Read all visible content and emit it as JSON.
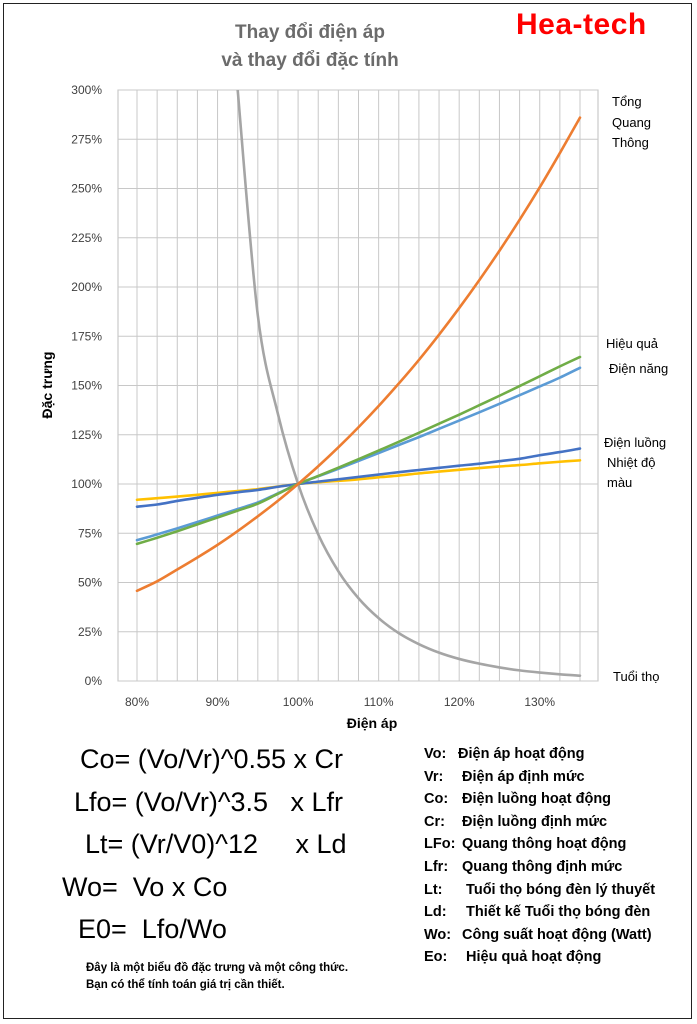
{
  "header": {
    "title_line1": "Thay đổi điện áp",
    "title_line2": "và thay đổi đặc tính",
    "brand": "Hea-tech"
  },
  "chart_data": {
    "type": "line",
    "xlabel": "Điện áp",
    "ylabel": "Đặc trưng",
    "xlim": [
      80,
      135
    ],
    "ylim": [
      0,
      300
    ],
    "x_ticks": [
      "80%",
      "90%",
      "100%",
      "110%",
      "120%",
      "130%"
    ],
    "y_ticks": [
      "0%",
      "25%",
      "50%",
      "75%",
      "100%",
      "125%",
      "150%",
      "175%",
      "200%",
      "225%",
      "250%",
      "275%",
      "300%"
    ],
    "grid": true,
    "x": [
      80,
      82.5,
      85,
      87.5,
      90,
      92.5,
      95,
      97.5,
      100,
      102.5,
      105,
      107.5,
      110,
      112.5,
      115,
      117.5,
      120,
      122.5,
      125,
      127.5,
      130,
      132.5,
      135
    ],
    "series": [
      {
        "name": "Tổng Quang Thông",
        "color": "#ed7d31",
        "values": [
          45.8,
          50.6,
          56.6,
          62.7,
          69.1,
          76.1,
          83.6,
          91.5,
          100,
          109.0,
          118.6,
          128.8,
          139.6,
          151.0,
          163.0,
          175.8,
          189.3,
          203.5,
          218.4,
          234.1,
          250.6,
          268.0,
          286.0
        ]
      },
      {
        "name": "Hiệu quả",
        "color": "#70ad47",
        "values": [
          69.6,
          72.7,
          76.0,
          79.5,
          83.0,
          86.5,
          90.0,
          95.0,
          100,
          104.1,
          108.3,
          112.6,
          117.0,
          121.4,
          126.0,
          130.6,
          135.2,
          140.0,
          144.8,
          149.7,
          154.7,
          159.7,
          164.5
        ]
      },
      {
        "name": "Điện năng",
        "color": "#5b9bd5",
        "values": [
          71.5,
          74.4,
          77.5,
          80.7,
          84.0,
          87.3,
          90.6,
          95.3,
          100,
          103.9,
          107.7,
          111.7,
          115.7,
          119.8,
          123.8,
          128.0,
          132.2,
          136.4,
          140.7,
          145.1,
          149.5,
          154.0,
          159.0
        ]
      },
      {
        "name": "Điện luồng",
        "color": "#4472c4",
        "values": [
          88.5,
          89.6,
          91.4,
          93.0,
          94.5,
          95.8,
          97.0,
          98.6,
          100,
          101.2,
          102.4,
          103.6,
          104.8,
          106.0,
          107.1,
          108.2,
          109.3,
          110.3,
          111.6,
          112.8,
          114.6,
          116.2,
          118.0
        ]
      },
      {
        "name": "Nhiệt độ màu",
        "color": "#ffc000",
        "values": [
          92.0,
          92.8,
          93.6,
          94.5,
          95.5,
          96.4,
          97.4,
          98.7,
          100,
          100.9,
          101.6,
          102.4,
          103.4,
          104.3,
          105.4,
          106.3,
          107.2,
          108.1,
          108.9,
          109.6,
          110.5,
          111.3,
          112.0
        ]
      },
      {
        "name": "Tuổi thọ",
        "color": "#a5a5a5",
        "values": [
          null,
          null,
          null,
          null,
          null,
          300.0,
          185.6,
          135.5,
          100,
          74.4,
          55.7,
          42.0,
          31.9,
          24.3,
          18.7,
          14.4,
          11.2,
          8.8,
          6.9,
          5.4,
          4.3,
          3.4,
          2.7
        ]
      }
    ]
  },
  "series_labels": {
    "luminous_flux": [
      "Tổng",
      "Quang",
      "Thông"
    ],
    "efficiency": "Hiệu quả",
    "power": "Điện năng",
    "current": "Điện luồng",
    "color_temp": [
      "Nhiệt độ",
      "màu"
    ],
    "life": "Tuổi thọ"
  },
  "formulas": [
    "Co= (Vo/Vr)^0.55 x Cr",
    "Lfo= (Vo/Vr)^3.5   x Lfr",
    "Lt= (Vr/V0)^12     x Ld",
    "Wo=  Vo x Co",
    "E0=  Lfo/Wo"
  ],
  "legend": [
    {
      "key": "Vo:",
      "desc": "Điện áp hoạt động"
    },
    {
      "key": "Vr:",
      "desc": " Điện áp định mức"
    },
    {
      "key": "Co:",
      "desc": " Điện luồng hoạt động"
    },
    {
      "key": "Cr:",
      "desc": " Điện luồng định mức"
    },
    {
      "key": "LFo:",
      "desc": " Quang thông hoạt động"
    },
    {
      "key": "Lfr:",
      "desc": " Quang thông định mức"
    },
    {
      "key": "Lt:",
      "desc": "  Tuổi thọ bóng đèn lý thuyết"
    },
    {
      "key": "Ld:",
      "desc": "  Thiết kế Tuổi thọ bóng đèn"
    },
    {
      "key": "Wo:",
      "desc": " Công suất hoạt động (Watt)"
    },
    {
      "key": "Eo:",
      "desc": "  Hiệu quả hoạt động"
    }
  ],
  "note": {
    "line1": "Đây là một biểu đồ đặc trưng và một công thức.",
    "line2": "Bạn có thể tính toán giá trị cần thiết."
  }
}
